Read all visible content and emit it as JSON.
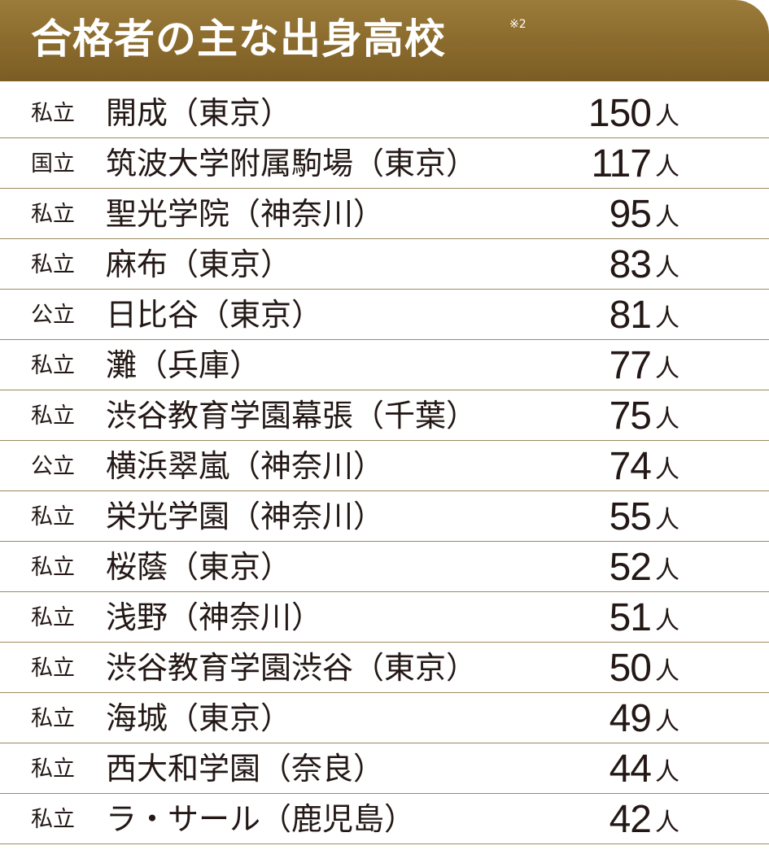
{
  "header": {
    "title": "合格者の主な出身高校",
    "note": "※2"
  },
  "rows": [
    {
      "type": "私立",
      "name": "開成（東京）",
      "count": "150",
      "unit": "人"
    },
    {
      "type": "国立",
      "name": "筑波大学附属駒場（東京）",
      "count": "117",
      "unit": "人"
    },
    {
      "type": "私立",
      "name": "聖光学院（神奈川）",
      "count": "95",
      "unit": "人"
    },
    {
      "type": "私立",
      "name": "麻布（東京）",
      "count": "83",
      "unit": "人"
    },
    {
      "type": "公立",
      "name": "日比谷（東京）",
      "count": "81",
      "unit": "人"
    },
    {
      "type": "私立",
      "name": "灘（兵庫）",
      "count": "77",
      "unit": "人"
    },
    {
      "type": "私立",
      "name": "渋谷教育学園幕張（千葉）",
      "count": "75",
      "unit": "人"
    },
    {
      "type": "公立",
      "name": "横浜翠嵐（神奈川）",
      "count": "74",
      "unit": "人"
    },
    {
      "type": "私立",
      "name": "栄光学園（神奈川）",
      "count": "55",
      "unit": "人"
    },
    {
      "type": "私立",
      "name": "桜蔭（東京）",
      "count": "52",
      "unit": "人"
    },
    {
      "type": "私立",
      "name": "浅野（神奈川）",
      "count": "51",
      "unit": "人"
    },
    {
      "type": "私立",
      "name": "渋谷教育学園渋谷（東京）",
      "count": "50",
      "unit": "人"
    },
    {
      "type": "私立",
      "name": "海城（東京）",
      "count": "49",
      "unit": "人"
    },
    {
      "type": "私立",
      "name": "西大和学園（奈良）",
      "count": "44",
      "unit": "人"
    },
    {
      "type": "私立",
      "name": "ラ・サール（鹿児島）",
      "count": "42",
      "unit": "人"
    }
  ]
}
